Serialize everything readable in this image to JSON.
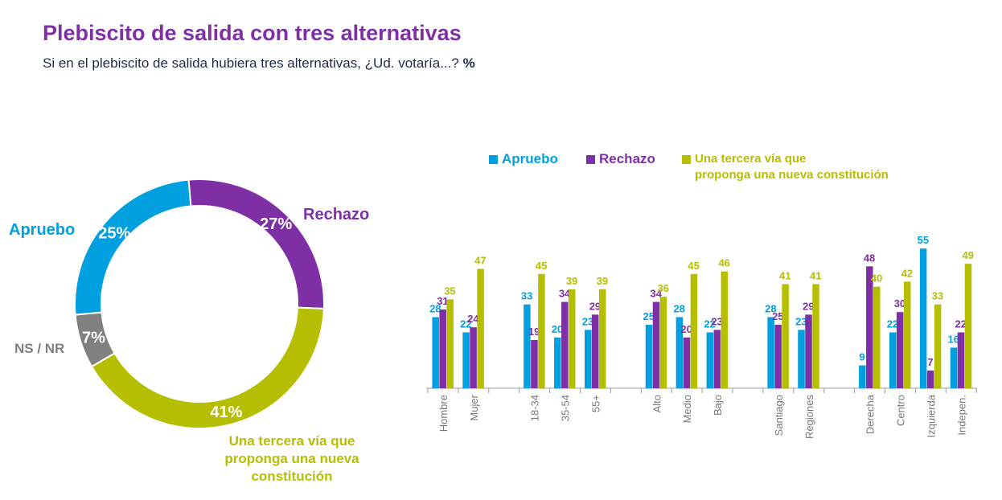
{
  "title": "Plebiscito de salida con tres alternativas",
  "subtitle": "Si en el plebiscito de salida hubiera tres alternativas, ¿Ud. votaría...?",
  "unit": "%",
  "colors": {
    "apruebo": "#009fdf",
    "rechazo": "#7f2fa5",
    "tercera": "#b5be00",
    "nsnr": "#808080"
  },
  "chart_data": [
    {
      "type": "pie",
      "donut": true,
      "slices": [
        {
          "label": "Rechazo",
          "value": 27,
          "value_label": "27%",
          "color": "#7f2fa5"
        },
        {
          "label": "Una tercera vía que proponga una nueva constitución",
          "value": 41,
          "value_label": "41%",
          "color": "#b5be00"
        },
        {
          "label": "NS / NR",
          "value": 7,
          "value_label": "7%",
          "color": "#808080"
        },
        {
          "label": "Apruebo",
          "value": 25,
          "value_label": "25%",
          "color": "#009fdf"
        }
      ]
    },
    {
      "type": "bar",
      "legend_placement": "top",
      "categories": [
        "Hombre",
        "Mujer",
        "",
        "18-34",
        "35-54",
        "55+",
        "",
        "Alto",
        "Medio",
        "Bajo",
        "",
        "Santiago",
        "Regiones",
        "",
        "Derecha",
        "Centro",
        "Izquierda",
        "Indepen."
      ],
      "series": [
        {
          "name": "Apruebo",
          "color": "#009fdf",
          "values": [
            28,
            22,
            null,
            33,
            20,
            23,
            null,
            25,
            28,
            22,
            null,
            28,
            23,
            null,
            9,
            22,
            55,
            16
          ]
        },
        {
          "name": "Rechazo",
          "color": "#7f2fa5",
          "values": [
            31,
            24,
            null,
            19,
            34,
            29,
            null,
            34,
            20,
            23,
            null,
            25,
            29,
            null,
            48,
            30,
            7,
            22
          ]
        },
        {
          "name": "Una tercera vía que proponga una nueva constitución",
          "color": "#b5be00",
          "values": [
            35,
            47,
            null,
            45,
            39,
            39,
            null,
            36,
            45,
            46,
            null,
            41,
            41,
            null,
            40,
            42,
            33,
            49
          ]
        }
      ],
      "ylim": [
        0,
        60
      ]
    }
  ],
  "legend": {
    "apruebo": "Apruebo",
    "rechazo": "Rechazo",
    "tercera_1": "Una tercera vía que",
    "tercera_2": "proponga una nueva constitución"
  },
  "donut_labels": {
    "apruebo": "Apruebo",
    "rechazo": "Rechazo",
    "nsnr": "NS / NR",
    "tercera_1": "Una tercera vía que",
    "tercera_2": "proponga una nueva",
    "tercera_3": "constitución"
  }
}
